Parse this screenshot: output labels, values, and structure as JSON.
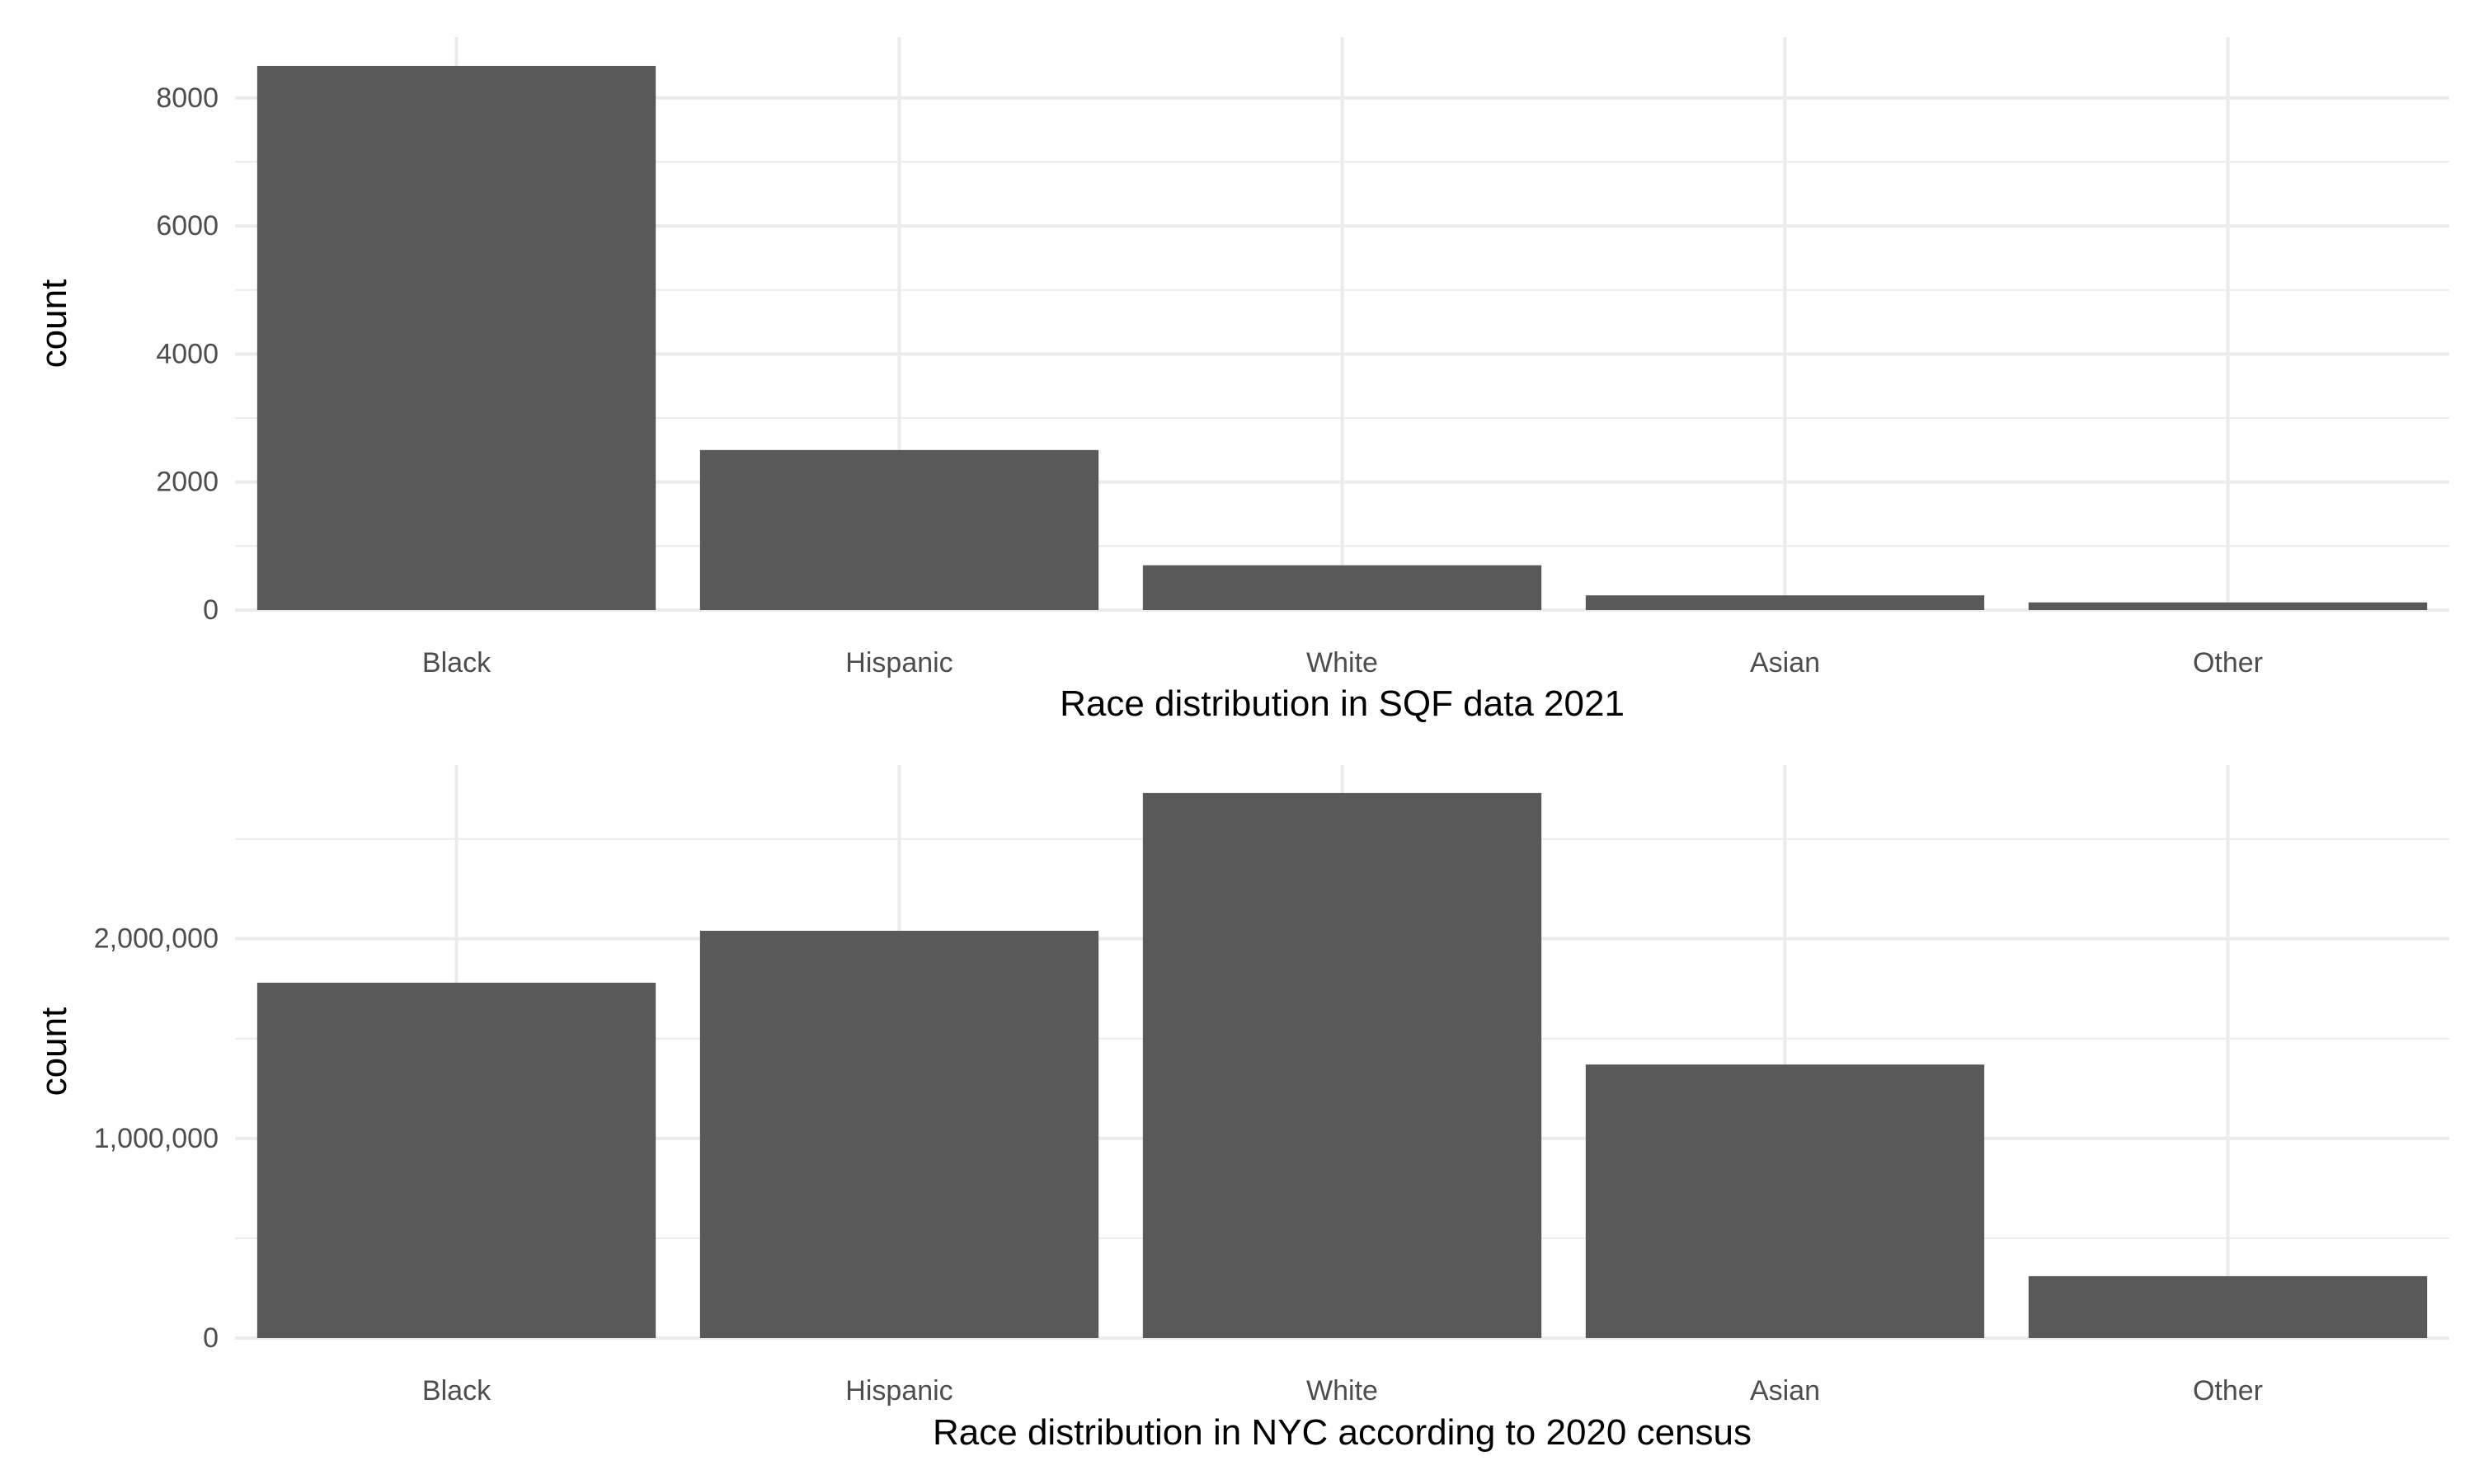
{
  "chart_data": [
    {
      "type": "bar",
      "categories": [
        "Black",
        "Hispanic",
        "White",
        "Asian",
        "Other"
      ],
      "values": [
        8500,
        2500,
        700,
        230,
        120
      ],
      "xlabel": "Race distribution in SQF data 2021",
      "ylabel": "count",
      "ylim": [
        0,
        8950
      ],
      "yticks": [
        0,
        2000,
        4000,
        6000,
        8000
      ],
      "ytick_labels": [
        "0",
        "2000",
        "4000",
        "6000",
        "8000"
      ],
      "grid": true,
      "bar_color": "#595959"
    },
    {
      "type": "bar",
      "categories": [
        "Black",
        "Hispanic",
        "White",
        "Asian",
        "Other"
      ],
      "values": [
        1780000,
        2040000,
        2730000,
        1370000,
        310000
      ],
      "xlabel": "Race distribution in NYC according to 2020 census",
      "ylabel": "count",
      "ylim": [
        0,
        2870000
      ],
      "yticks": [
        0,
        1000000,
        2000000
      ],
      "ytick_labels": [
        "0",
        "1,000,000",
        "2,000,000"
      ],
      "grid": true,
      "bar_color": "#595959"
    }
  ]
}
